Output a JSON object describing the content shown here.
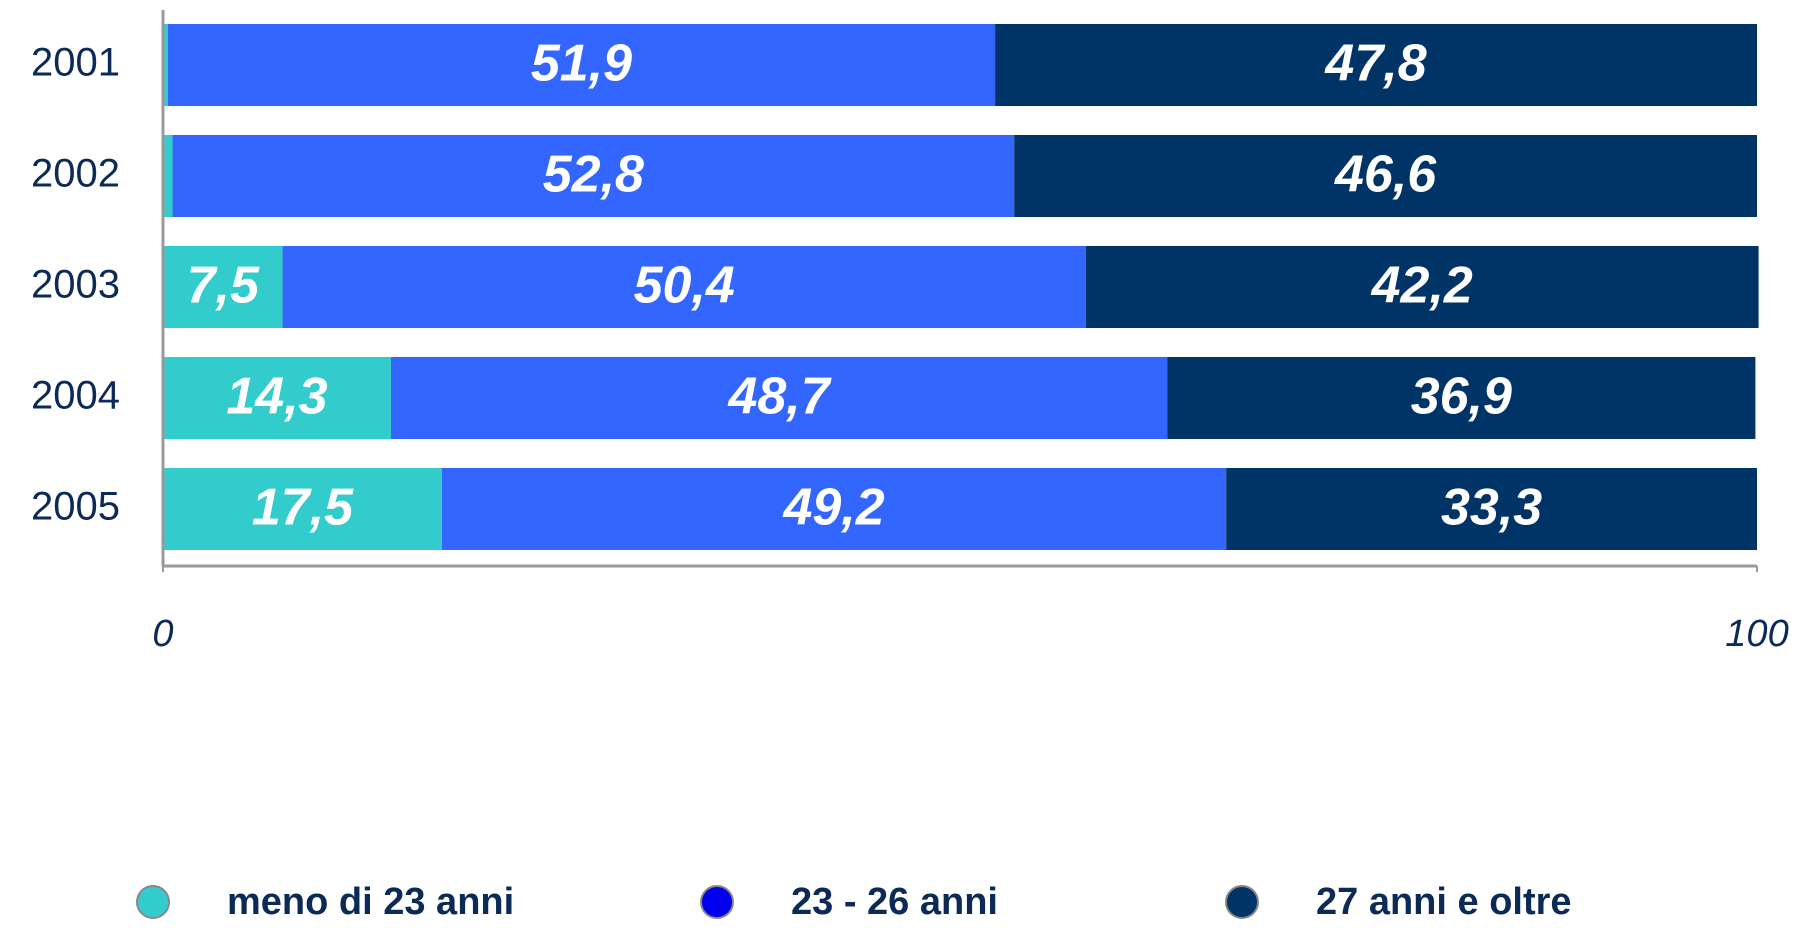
{
  "chart_data": {
    "type": "stacked-bar-horizontal",
    "categories": [
      "2001",
      "2002",
      "2003",
      "2004",
      "2005"
    ],
    "series": [
      {
        "name": "meno di 23 anni",
        "color": "#33cccc",
        "marker_color": "#33cccc",
        "values": [
          0.3,
          0.6,
          7.5,
          14.3,
          17.5
        ],
        "value_labels": [
          null,
          null,
          "7,5",
          "14,3",
          "17,5"
        ]
      },
      {
        "name": "23 - 26 anni",
        "color": "#3366ff",
        "marker_color": "#0000ee",
        "values": [
          51.9,
          52.8,
          50.4,
          48.7,
          49.2
        ],
        "value_labels": [
          "51,9",
          "52,8",
          "50,4",
          "48,7",
          "49,2"
        ]
      },
      {
        "name": "27 anni e oltre",
        "color": "#003366",
        "marker_color": "#003366",
        "values": [
          47.8,
          46.6,
          42.2,
          36.9,
          33.3
        ],
        "value_labels": [
          "47,8",
          "46,6",
          "42,2",
          "36,9",
          "33,3"
        ]
      }
    ],
    "xlim": [
      0,
      100
    ],
    "xticks": [
      0,
      100
    ]
  }
}
